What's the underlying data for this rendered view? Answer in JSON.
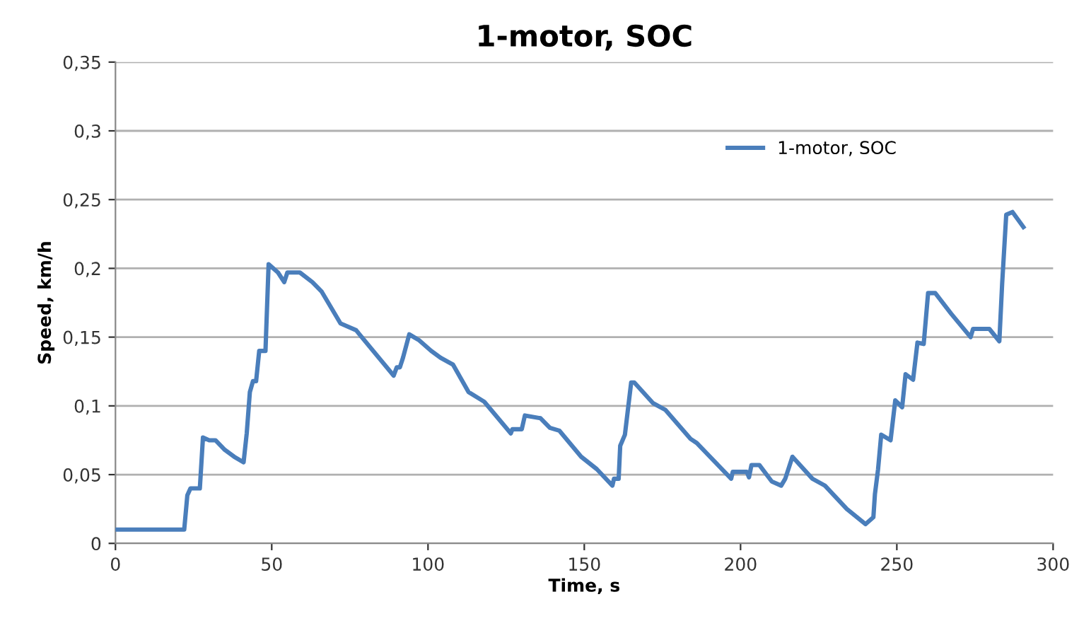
{
  "chart_data": {
    "type": "line",
    "title": "1-motor, SOC",
    "xlabel": "Time, s",
    "ylabel": "Speed, km/h",
    "xlim": [
      0,
      300
    ],
    "xticks": [
      0,
      50,
      100,
      150,
      200,
      250,
      300
    ],
    "ylim": [
      0,
      0.35
    ],
    "yticks": [
      {
        "value": 0,
        "label": "0"
      },
      {
        "value": 0.05,
        "label": "0,05"
      },
      {
        "value": 0.1,
        "label": "0,1"
      },
      {
        "value": 0.15,
        "label": "0,15"
      },
      {
        "value": 0.2,
        "label": "0,2"
      },
      {
        "value": 0.25,
        "label": "0,25"
      },
      {
        "value": 0.3,
        "label": "0,3"
      },
      {
        "value": 0.35,
        "label": "0,35"
      }
    ],
    "grid": "y",
    "legend": "top right",
    "marker": "none",
    "line_style": "solid",
    "series": [
      {
        "name": "1-motor, SOC",
        "color": "#4a7ebb",
        "x": [
          0,
          22,
          23,
          24,
          27,
          28,
          30,
          32,
          35,
          38,
          41,
          42,
          43,
          44,
          45,
          46,
          48,
          49,
          52,
          54,
          55,
          59,
          63,
          66,
          72,
          77,
          89,
          90,
          91,
          92,
          94,
          97,
          101,
          104,
          108,
          113,
          118,
          126.5,
          127,
          130,
          131,
          136,
          139,
          142,
          149,
          154,
          159,
          159.5,
          161,
          161.5,
          163,
          165,
          166,
          172,
          176,
          184,
          186,
          197,
          197.5,
          202,
          202.7,
          203.5,
          206,
          210,
          213,
          214.3,
          216.6,
          223,
          227,
          234,
          240,
          242.5,
          243,
          244,
          245,
          248,
          249.5,
          251.7,
          252.8,
          255.2,
          256.6,
          258.6,
          260,
          262.3,
          267.4,
          273.6,
          274.4,
          279.6,
          282.8,
          283.7,
          285,
          287,
          290.5
        ],
        "values": [
          0.01,
          0.01,
          0.035,
          0.04,
          0.04,
          0.077,
          0.075,
          0.075,
          0.068,
          0.063,
          0.059,
          0.08,
          0.11,
          0.118,
          0.118,
          0.14,
          0.14,
          0.203,
          0.197,
          0.19,
          0.197,
          0.197,
          0.19,
          0.183,
          0.16,
          0.155,
          0.122,
          0.128,
          0.128,
          0.135,
          0.152,
          0.148,
          0.14,
          0.135,
          0.13,
          0.11,
          0.103,
          0.08,
          0.083,
          0.083,
          0.093,
          0.091,
          0.084,
          0.082,
          0.063,
          0.054,
          0.042,
          0.047,
          0.047,
          0.071,
          0.079,
          0.117,
          0.117,
          0.102,
          0.097,
          0.076,
          0.073,
          0.047,
          0.052,
          0.052,
          0.048,
          0.057,
          0.057,
          0.045,
          0.042,
          0.047,
          0.063,
          0.047,
          0.042,
          0.025,
          0.014,
          0.019,
          0.036,
          0.054,
          0.079,
          0.075,
          0.104,
          0.099,
          0.123,
          0.119,
          0.146,
          0.145,
          0.182,
          0.182,
          0.167,
          0.15,
          0.156,
          0.156,
          0.147,
          0.189,
          0.239,
          0.241,
          0.23
        ]
      }
    ]
  }
}
